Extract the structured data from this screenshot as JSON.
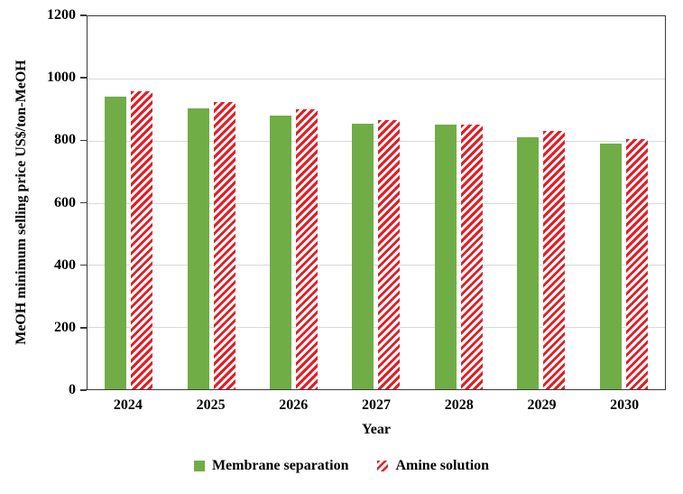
{
  "chart_data": {
    "type": "bar",
    "title": "",
    "categories": [
      "2024",
      "2025",
      "2026",
      "2027",
      "2028",
      "2029",
      "2030"
    ],
    "series": [
      {
        "name": "Membrane separation",
        "pattern": "solid",
        "color": "#70AD47",
        "values": [
          940,
          905,
          880,
          855,
          850,
          810,
          790
        ]
      },
      {
        "name": "Amine solution",
        "pattern": "diagonal-stripes",
        "color": "#E01F26",
        "stripe_background": "#FFFFFF",
        "values": [
          960,
          925,
          900,
          865,
          850,
          830,
          805
        ]
      }
    ],
    "xlabel": "Year",
    "ylabel": "MeOH minimum selling price US$/ton-MeOH",
    "ylim": [
      0,
      1200
    ],
    "ytick_step": 200,
    "yticks": [
      0,
      200,
      400,
      600,
      800,
      1000,
      1200
    ],
    "grid": true,
    "gridline_color": "#D9D9D9",
    "axis_border_color": "#3A3A3A",
    "legend_position": "bottom"
  }
}
